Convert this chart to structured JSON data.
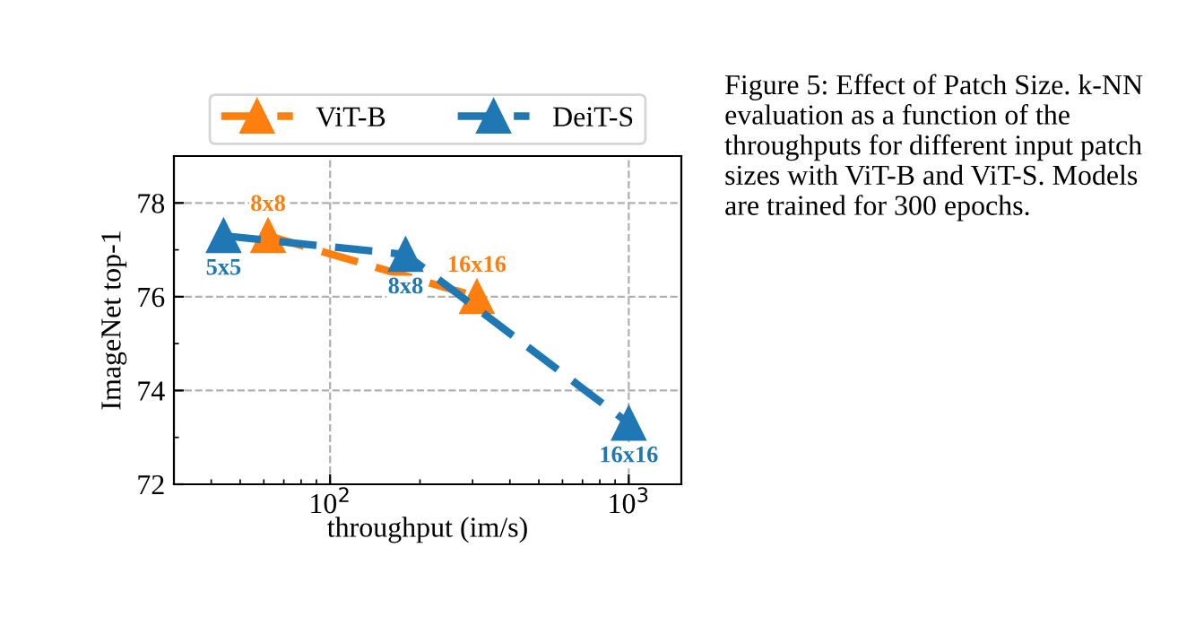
{
  "chart_data": {
    "type": "line",
    "xlabel": "throughput (im/s)",
    "ylabel": "ImageNet top-1",
    "log": "x",
    "xlim": [
      30,
      1500
    ],
    "xticks": [
      {
        "value": 100,
        "label": "10$^{2}$"
      },
      {
        "value": 1000,
        "label": "10$^{3}$"
      }
    ],
    "ylim": [
      72,
      79
    ],
    "yticks": [
      72,
      {
        "value": 73,
        "label": null
      },
      74,
      {
        "value": 75,
        "label": null
      },
      76,
      {
        "value": 77,
        "label": null
      },
      78
    ],
    "grid": true,
    "legend": "top",
    "marker": "triangle",
    "line_style": "dashed",
    "series": [
      {
        "name": "ViT-B",
        "color": "#ff7f0e",
        "x": [
          62,
          310
        ],
        "values": [
          77.3,
          76.0
        ]
      },
      {
        "name": "DeiT-S",
        "color": "#1f77b4",
        "x": [
          44,
          179,
          1000
        ],
        "values": [
          77.3,
          76.9,
          73.3
        ]
      }
    ],
    "annotations": [
      {
        "text": "8x8",
        "x": 62,
        "y": 77.3
      },
      {
        "text": "16x16",
        "x": 310,
        "y": 76.0
      },
      {
        "text": "5x5",
        "x": 44,
        "y": 77.3
      },
      {
        "text": "8x8",
        "x": 179,
        "y": 76.9
      },
      {
        "text": "16x16",
        "x": 1000,
        "y": 73.3
      },
      "Figure 5: Effect of Patch Size. k-NN evaluation as a function of the throughputs for different input patch sizes with ViT-B and ViT-S. Models are trained for 300 epochs."
    ]
  }
}
